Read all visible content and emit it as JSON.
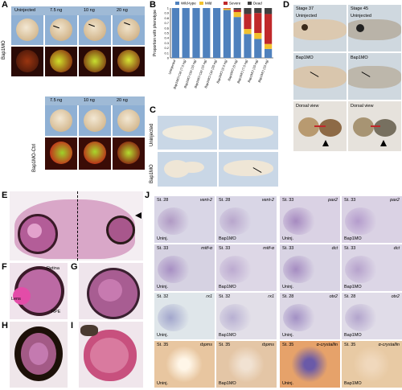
{
  "panel_letters": [
    "A",
    "B",
    "C",
    "D",
    "E",
    "F",
    "G",
    "H",
    "I",
    "J"
  ],
  "panel_a": {
    "col_headers_top": [
      "Uninjected",
      "7.5 ng",
      "10 ng",
      "20 ng"
    ],
    "row_label_top": "Bap1MO",
    "col_headers_bottom": [
      "7.5 ng",
      "10 ng",
      "20 ng"
    ],
    "row_label_bottom": "Bap1MO-Ctrl"
  },
  "panel_c": {
    "row_labels": [
      "Uninjected",
      "Bap1MO"
    ]
  },
  "panel_d": {
    "stage_labels": [
      "Stage 37",
      "Stage 45"
    ],
    "cell_labels": [
      "Uninjected",
      "Uninjected",
      "Bap1MO",
      "Bap1MO",
      "Dorsal view",
      "Dorsal view"
    ]
  },
  "panel_f": {
    "labels": [
      "Retina",
      "Lens",
      "RPE"
    ]
  },
  "panel_j": {
    "cells": [
      {
        "stage": "St. 28",
        "gene": "vent-2",
        "cond": "Uninj."
      },
      {
        "stage": "St. 28",
        "gene": "vent-2",
        "cond": "Bap1MO"
      },
      {
        "stage": "St. 33",
        "gene": "pax2",
        "cond": "Uninj."
      },
      {
        "stage": "St. 33",
        "gene": "pax2",
        "cond": "Bap1MO"
      },
      {
        "stage": "St. 33",
        "gene": "mitf-α",
        "cond": "Uninj."
      },
      {
        "stage": "St. 33",
        "gene": "mitf-α",
        "cond": "Bap1MO"
      },
      {
        "stage": "St. 33",
        "gene": "dct",
        "cond": "Uninj."
      },
      {
        "stage": "St. 33",
        "gene": "dct",
        "cond": "Bap1MO"
      },
      {
        "stage": "St. 32",
        "gene": "rx1",
        "cond": "Uninj."
      },
      {
        "stage": "St. 32",
        "gene": "rx1",
        "cond": "Bap1MO"
      },
      {
        "stage": "St. 28",
        "gene": "otx2",
        "cond": "Uninj."
      },
      {
        "stage": "St. 28",
        "gene": "otx2",
        "cond": "Bap1MO"
      },
      {
        "stage": "St. 35",
        "gene": "rbpms",
        "cond": "Uninj."
      },
      {
        "stage": "St. 35",
        "gene": "rbpms",
        "cond": "Bap1MO"
      },
      {
        "stage": "St. 35",
        "gene": "α-crystallin",
        "cond": "Uninj."
      },
      {
        "stage": "St. 35",
        "gene": "α-crystallin",
        "cond": "Bap1MO"
      }
    ]
  },
  "chart_data": {
    "type": "bar",
    "stacked": true,
    "ylabel": "Proportion with phenotype",
    "ylim": [
      0,
      1
    ],
    "yticks": [
      "0",
      "0.1",
      "0.2",
      "0.3",
      "0.4",
      "0.5",
      "0.6",
      "0.7",
      "0.8",
      "0.9",
      "1"
    ],
    "legend": [
      "Wild-type",
      "Mild",
      "Severe",
      "Dead"
    ],
    "legend_position": "top",
    "colors": [
      "#4f81bd",
      "#f2c12e",
      "#c0282a",
      "#404040"
    ],
    "categories": [
      "Uninjected",
      "Bap1MO-Ctrl (7.5 ng)",
      "Bap1MO-Ctrl (10 ng)",
      "Bap1MO-Ctrl (15 ng)",
      "Bap1MO-Ctrl (20 ng)",
      "Bap1MO (2.5 ng)",
      "Bap1MO (5 ng)",
      "Bap1MO (7.5 ng)",
      "Bap1MO (10 ng)",
      "Bap1MO (15 ng)"
    ],
    "series": [
      {
        "name": "Wild-type",
        "values": [
          1.0,
          1.0,
          1.0,
          1.0,
          1.0,
          0.96,
          0.82,
          0.48,
          0.38,
          0.18
        ]
      },
      {
        "name": "Mild",
        "values": [
          0.0,
          0.0,
          0.0,
          0.0,
          0.0,
          0.03,
          0.1,
          0.1,
          0.12,
          0.1
        ]
      },
      {
        "name": "Severe",
        "values": [
          0.0,
          0.0,
          0.0,
          0.0,
          0.0,
          0.01,
          0.05,
          0.3,
          0.4,
          0.6
        ]
      },
      {
        "name": "Dead",
        "values": [
          0.0,
          0.0,
          0.0,
          0.0,
          0.0,
          0.0,
          0.03,
          0.12,
          0.1,
          0.12
        ]
      }
    ]
  }
}
